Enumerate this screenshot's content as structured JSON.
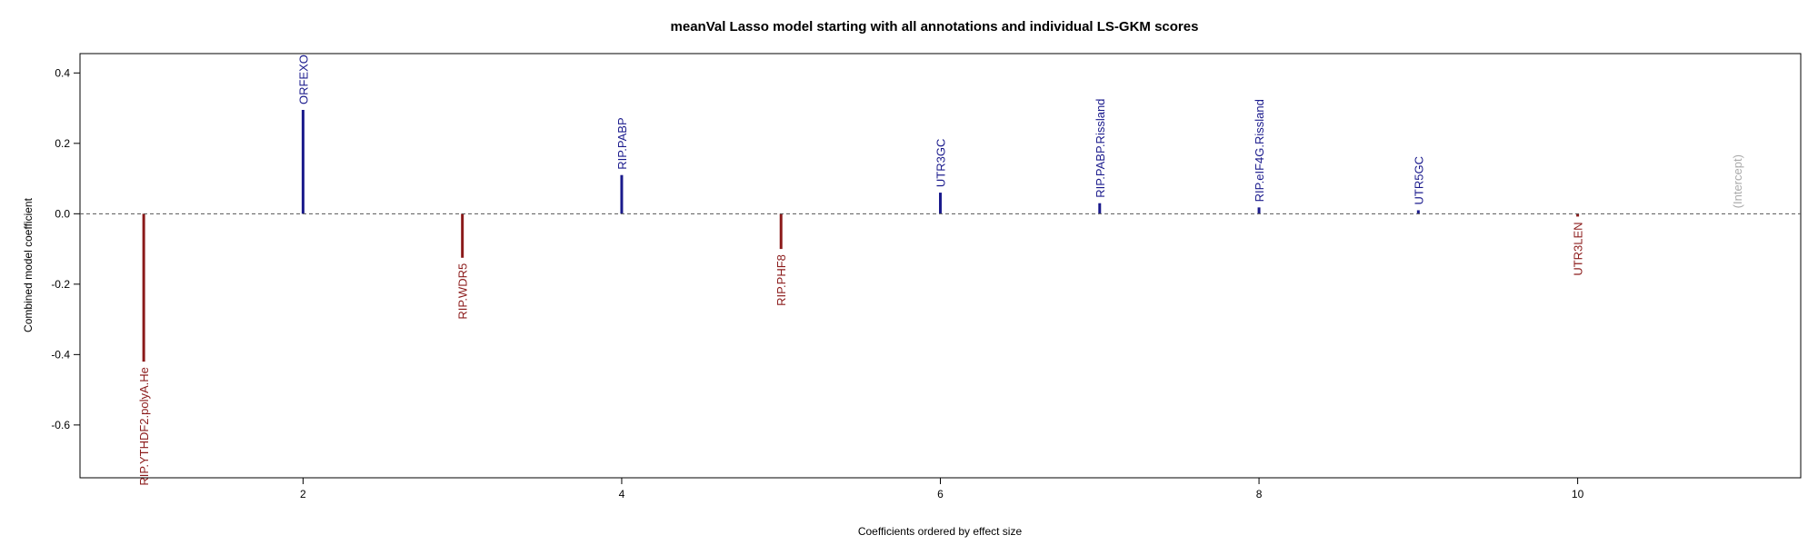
{
  "chart_data": {
    "type": "bar",
    "title": "meanVal Lasso model starting with all annotations and individual LS-GKM scores",
    "xlabel": "Coefficients ordered by effect size",
    "ylabel": "Combined model coefficient",
    "xlim": [
      0.6,
      11.4
    ],
    "ylim": [
      -0.75,
      0.455
    ],
    "xticks": [
      2,
      4,
      6,
      8,
      10
    ],
    "xtick_labels": [
      "2",
      "4",
      "6",
      "8",
      "10"
    ],
    "yticks": [
      -0.6,
      -0.4,
      -0.2,
      0.0,
      0.2,
      0.4
    ],
    "ytick_labels": [
      "-0.6",
      "-0.4",
      "-0.2",
      "0.0",
      "0.2",
      "0.4"
    ],
    "reference_line": 0,
    "grid": false,
    "colors": {
      "positive": "#1a1a8c",
      "negative": "#8b1a1a",
      "zero": "#aaaaaa",
      "reference_line": "#555555"
    },
    "points": [
      {
        "x": 1,
        "label": "RIP.YTHDF2.polyA.He",
        "value": -0.42
      },
      {
        "x": 2,
        "label": "ORFEXO",
        "value": 0.295
      },
      {
        "x": 3,
        "label": "RIP.WDR5",
        "value": -0.125
      },
      {
        "x": 4,
        "label": "RIP.PABP",
        "value": 0.11
      },
      {
        "x": 5,
        "label": "RIP.PHF8",
        "value": -0.1
      },
      {
        "x": 6,
        "label": "UTR3GC",
        "value": 0.06
      },
      {
        "x": 7,
        "label": "RIP.PABP.Rissland",
        "value": 0.03
      },
      {
        "x": 8,
        "label": "RIP.eIF4G.Rissland",
        "value": 0.018
      },
      {
        "x": 9,
        "label": "UTR5GC",
        "value": 0.01
      },
      {
        "x": 10,
        "label": "UTR3LEN",
        "value": -0.008
      },
      {
        "x": 11,
        "label": "(Intercept)",
        "value": 0.0
      }
    ]
  }
}
